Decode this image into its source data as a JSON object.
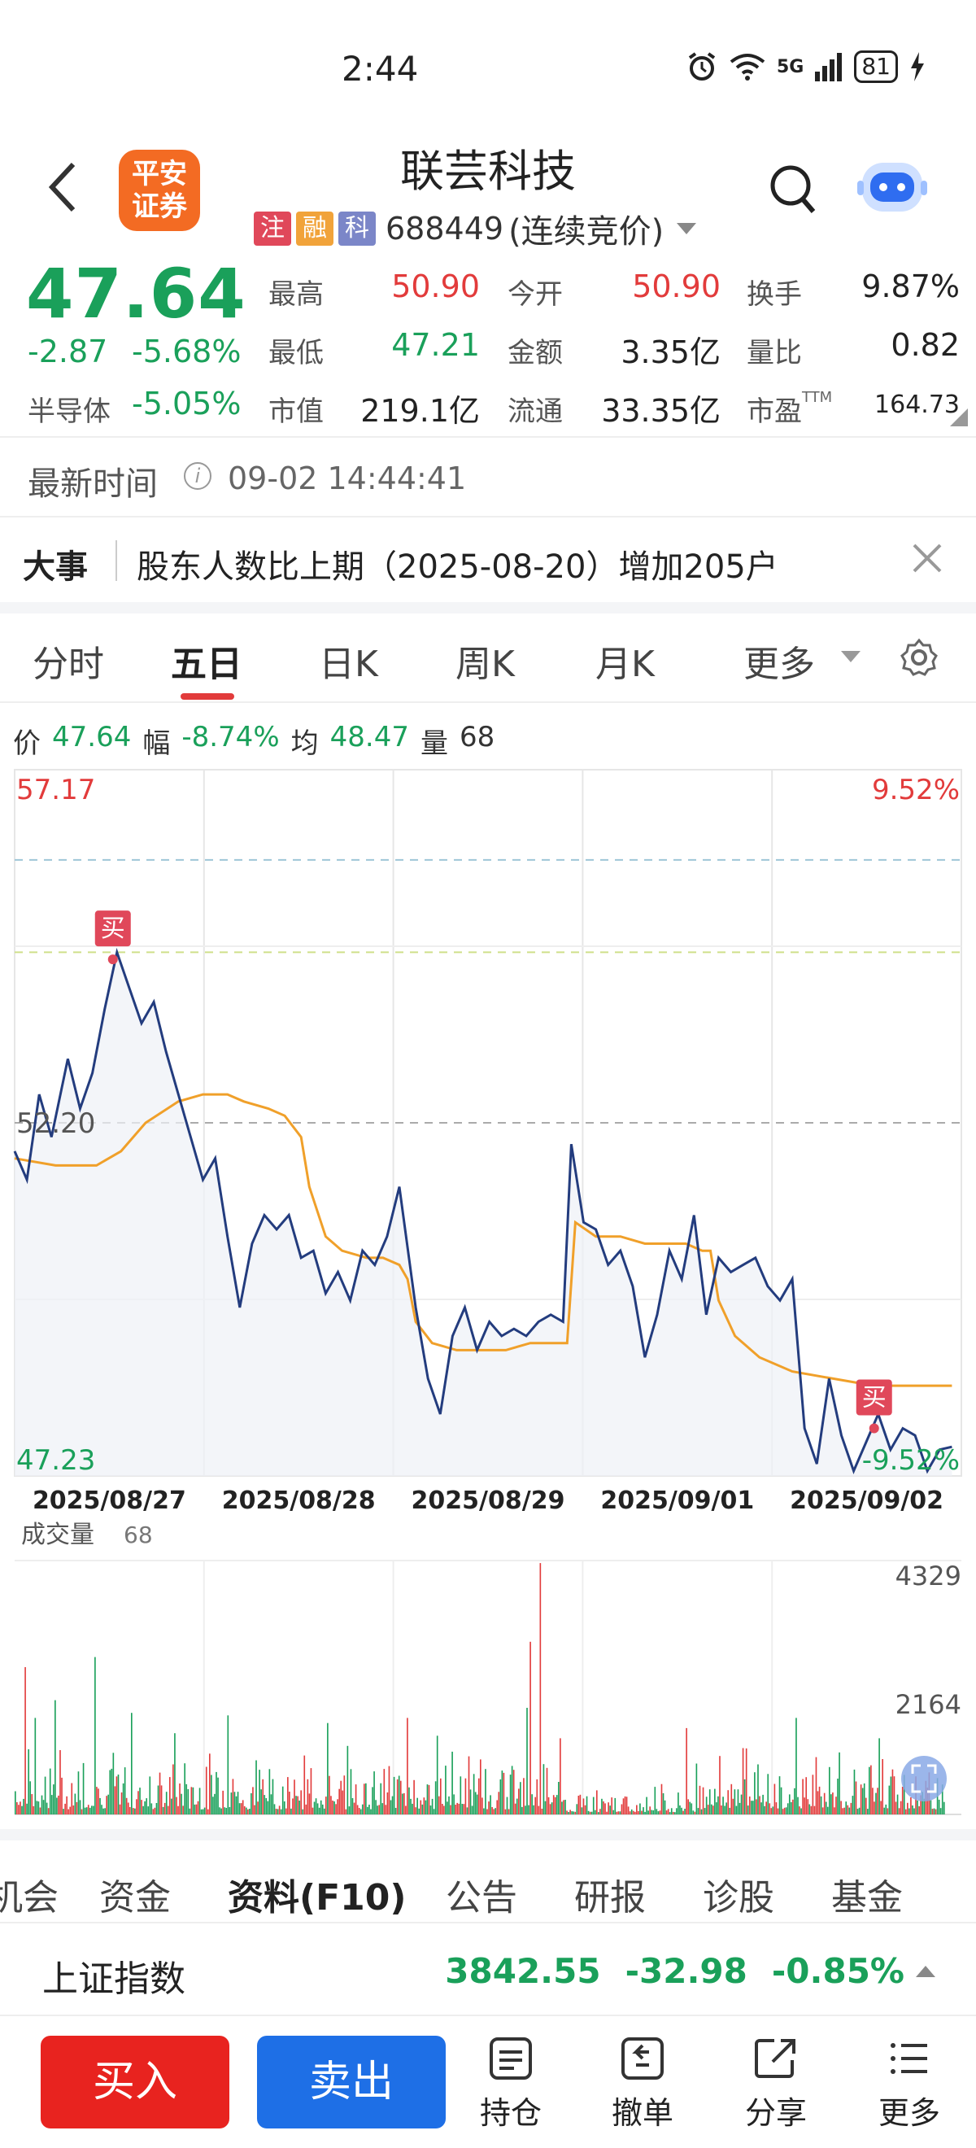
{
  "status_bar": {
    "time": "2:44",
    "network": "5G",
    "battery": "81"
  },
  "header": {
    "app_logo_text": [
      "平安",
      "证券"
    ],
    "stock_name": "联芸科技",
    "tags": [
      "注",
      "融",
      "科"
    ],
    "stock_code": "688449",
    "trade_status": "(连续竞价)"
  },
  "quote": {
    "price": "47.64",
    "change": "-2.87",
    "change_pct": "-5.68%",
    "sector_name": "半导体",
    "sector_pct": "-5.05%",
    "fields": [
      {
        "label": "最高",
        "value": "50.90"
      },
      {
        "label": "今开",
        "value": "50.90"
      },
      {
        "label": "换手",
        "value": "9.87%"
      },
      {
        "label": "最低",
        "value": "47.21"
      },
      {
        "label": "金额",
        "value": "3.35亿"
      },
      {
        "label": "量比",
        "value": "0.82"
      },
      {
        "label": "市值",
        "value": "219.1亿"
      },
      {
        "label": "流通",
        "value": "33.35亿"
      },
      {
        "label": "市盈",
        "value": "164.73"
      }
    ],
    "ttm_label": "TTM"
  },
  "update": {
    "label": "最新时间",
    "time": "09-02 14:44:41"
  },
  "event": {
    "label": "大事",
    "text": "股东人数比上期（2025-08-20）增加205户"
  },
  "chart_tabs": [
    "分时",
    "五日",
    "日K",
    "周K",
    "月K",
    "更多"
  ],
  "active_tab": "五日",
  "chart_info": {
    "price_label": "价",
    "price": "47.64",
    "range_label": "幅",
    "range": "-8.74%",
    "avg_label": "均",
    "avg": "48.47",
    "vol_label": "量",
    "vol": "68"
  },
  "chart_data": {
    "type": "line",
    "title": "",
    "x_days": [
      "2025/08/27",
      "2025/08/28",
      "2025/08/29",
      "2025/09/01",
      "2025/09/02"
    ],
    "y_max_label": "57.17",
    "y_min_label": "47.23",
    "y_mid_label": "52.20",
    "pct_max_label": "9.52%",
    "pct_min_label": "-9.52%",
    "ylim": [
      47.23,
      57.17
    ],
    "prev_close": 52.2,
    "series": [
      {
        "values": [
          51.8,
          51.4,
          52.6,
          52.0,
          53.1,
          52.4,
          52.9,
          53.8,
          54.6,
          54.1,
          53.6,
          53.9,
          53.2,
          52.6,
          52.0,
          51.4,
          51.7,
          50.6,
          49.6,
          50.5,
          50.9,
          50.7,
          50.9,
          50.3,
          50.4,
          49.8,
          50.1,
          49.7,
          50.4,
          50.2,
          50.6,
          51.3,
          49.6,
          48.6,
          48.1,
          49.2,
          49.6,
          49.0,
          49.4,
          49.2,
          49.3,
          49.2,
          49.4,
          49.5,
          49.4,
          51.9,
          50.8,
          50.7,
          50.2,
          50.4,
          49.9,
          48.9,
          49.5,
          50.4,
          50.0,
          50.9,
          49.5,
          50.3,
          50.1,
          50.2,
          50.3,
          49.9,
          49.7,
          50.0,
          47.9,
          47.4,
          48.6,
          47.8,
          47.3,
          47.7,
          48.1,
          47.6,
          47.9,
          47.8,
          47.3,
          47.6,
          47.64
        ],
        "x_positions": [
          0,
          0.3,
          0.6,
          0.9,
          1.3,
          1.6,
          1.9,
          2.2,
          2.5,
          2.8,
          3.1,
          3.4,
          3.7,
          4.0,
          4.3,
          4.6,
          4.9,
          5.2,
          5.5,
          5.8,
          6.1,
          6.4,
          6.7,
          7.0,
          7.3,
          7.6,
          7.9,
          8.2,
          8.5,
          8.8,
          9.1,
          9.4,
          9.8,
          10.1,
          10.4,
          10.7,
          11.0,
          11.3,
          11.6,
          11.9,
          12.2,
          12.5,
          12.8,
          13.1,
          13.4,
          13.6,
          13.9,
          14.2,
          14.5,
          14.8,
          15.1,
          15.4,
          15.7,
          16.0,
          16.3,
          16.6,
          16.9,
          17.2,
          17.5,
          17.8,
          18.1,
          18.4,
          18.7,
          19.0,
          19.3,
          19.6,
          19.9,
          20.2,
          20.5,
          20.8,
          21.1,
          21.4,
          21.7,
          22.0,
          22.3,
          22.6,
          22.9
        ]
      },
      {
        "values": [
          51.7,
          51.6,
          51.6,
          51.8,
          52.2,
          52.5,
          52.6,
          52.6,
          52.5,
          52.4,
          52.3,
          52.0,
          51.3,
          50.6,
          50.4,
          50.3,
          50.3,
          50.2,
          50.0,
          49.4,
          49.1,
          49.0,
          49.0,
          49.0,
          49.1,
          49.1,
          49.1,
          50.8,
          50.6,
          50.6,
          50.5,
          50.5,
          50.5,
          50.4,
          50.4,
          49.7,
          49.2,
          48.9,
          48.7,
          48.6,
          48.5,
          48.5
        ],
        "x_positions": [
          0,
          1.0,
          2.0,
          2.6,
          3.2,
          4.0,
          4.6,
          5.2,
          5.6,
          6.2,
          6.6,
          7.0,
          7.2,
          7.6,
          8.0,
          8.6,
          9.0,
          9.4,
          9.6,
          9.8,
          10.2,
          10.8,
          11.4,
          12.0,
          12.6,
          13.2,
          13.5,
          13.7,
          14.2,
          14.8,
          15.4,
          16.0,
          16.4,
          16.8,
          17.0,
          17.2,
          17.6,
          18.2,
          19.0,
          20.0,
          21.0,
          22.9
        ]
      }
    ],
    "markers": [
      {
        "label": "买",
        "x_position": 2.4,
        "value": 54.5
      },
      {
        "label": "买",
        "x_position": 21.0,
        "value": 47.9
      }
    ],
    "reference_levels": [
      55.9,
      54.6,
      52.2,
      49.6
    ]
  },
  "volume": {
    "label": "成交量",
    "value": "68",
    "max_label": "4329",
    "mid_label": "2164",
    "ylim": [
      0,
      4329
    ]
  },
  "sub_tabs": [
    "机会",
    "资金",
    "资料(F10)",
    "公告",
    "研报",
    "诊股",
    "基金"
  ],
  "active_sub_tab": "资料(F10)",
  "index": {
    "name": "上证指数",
    "value": "3842.55",
    "change": "-32.98",
    "change_pct": "-0.85%"
  },
  "actions": {
    "buy": "买入",
    "sell": "卖出",
    "positions": "持仓",
    "cancel": "撤单",
    "share": "分享",
    "more": "更多"
  },
  "colors": {
    "up": "#e23b3b",
    "down": "#1aa05a",
    "price_line": "#233c7e",
    "avg_line": "#f0a02a",
    "buy": "#e8231f",
    "sell": "#1e6fe6"
  }
}
